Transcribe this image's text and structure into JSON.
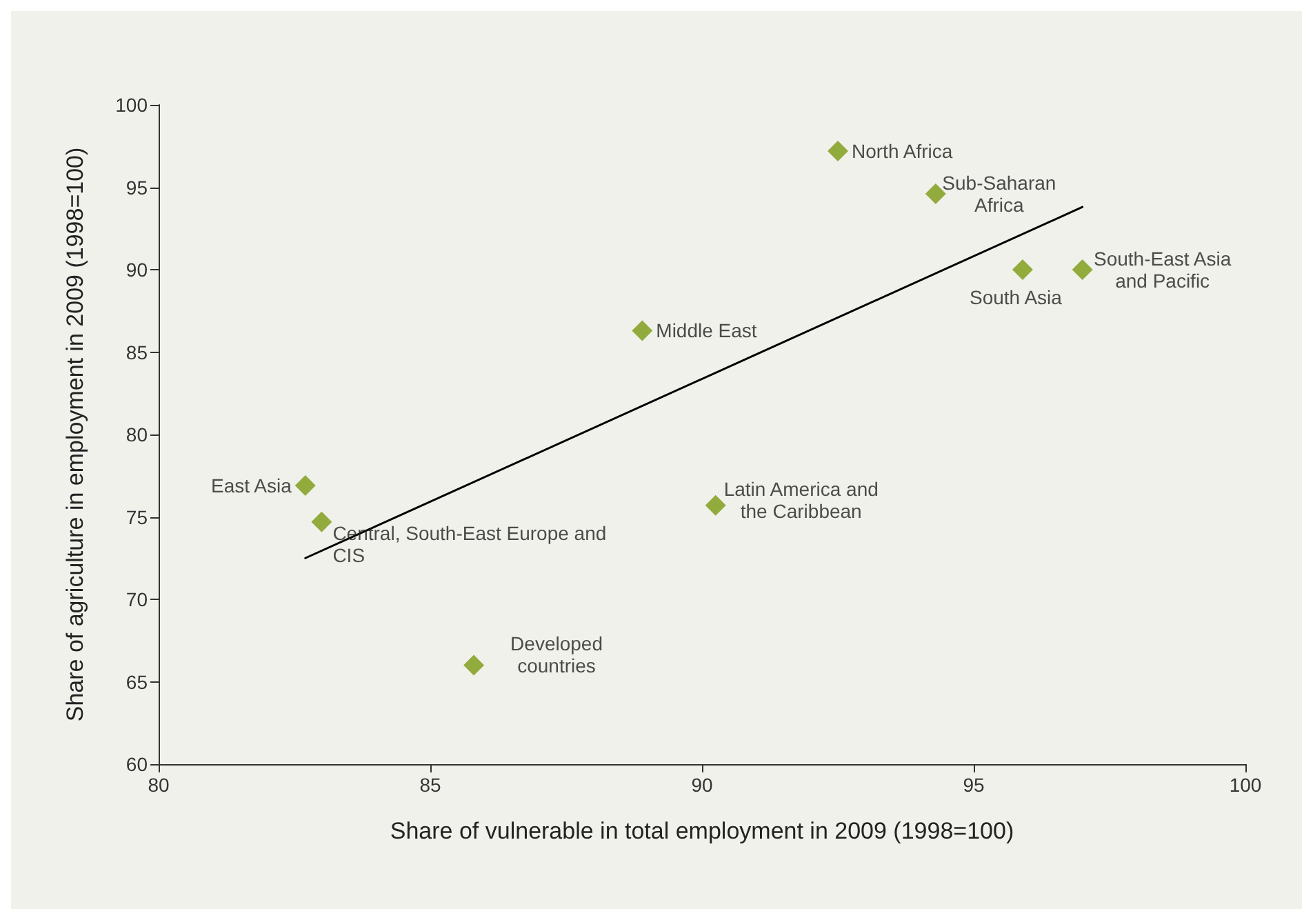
{
  "chart_data": {
    "type": "scatter",
    "xlabel": "Share of vulnerable in total employment in 2009 (1998=100)",
    "ylabel": "Share of agriculture in employment in 2009 (1998=100)",
    "xlim": [
      80,
      100
    ],
    "xticks": [
      80,
      85,
      90,
      95,
      100
    ],
    "ylim": [
      60,
      100
    ],
    "yticks": [
      60,
      65,
      70,
      75,
      80,
      85,
      90,
      95,
      100
    ],
    "grid": false,
    "series": [
      {
        "marker": "diamond",
        "color": "#7a9a12",
        "x": [
          92.5,
          94.3,
          95.9,
          97.0,
          88.9,
          82.7,
          83.0,
          90.25,
          85.8
        ],
        "values": [
          97.2,
          94.6,
          90.0,
          90.0,
          86.3,
          76.9,
          74.7,
          75.7,
          66.0
        ]
      },
      {
        "type": "line",
        "marker": "none",
        "color": "#000000",
        "x": [
          82.7,
          97.0
        ],
        "values": [
          72.5,
          93.8
        ]
      }
    ],
    "annotations": [
      {
        "text": "North Africa",
        "x": 92.5,
        "y": 97.2
      },
      {
        "text": "Sub-Saharan\nAfrica",
        "x": 94.3,
        "y": 94.6
      },
      {
        "text": "South Asia",
        "x": 95.9,
        "y": 90.0
      },
      {
        "text": "South-East Asia\nand Pacific",
        "x": 97.0,
        "y": 90.0
      },
      {
        "text": "Middle East",
        "x": 88.9,
        "y": 86.3
      },
      {
        "text": "East Asia",
        "x": 82.7,
        "y": 76.9
      },
      {
        "text": "Central, South-East Europe and\nCIS",
        "x": 83.0,
        "y": 74.7
      },
      {
        "text": "Latin America and\nthe Caribbean",
        "x": 90.25,
        "y": 75.7
      },
      {
        "text": "Developed\ncountries",
        "x": 85.8,
        "y": 66.0
      }
    ]
  }
}
